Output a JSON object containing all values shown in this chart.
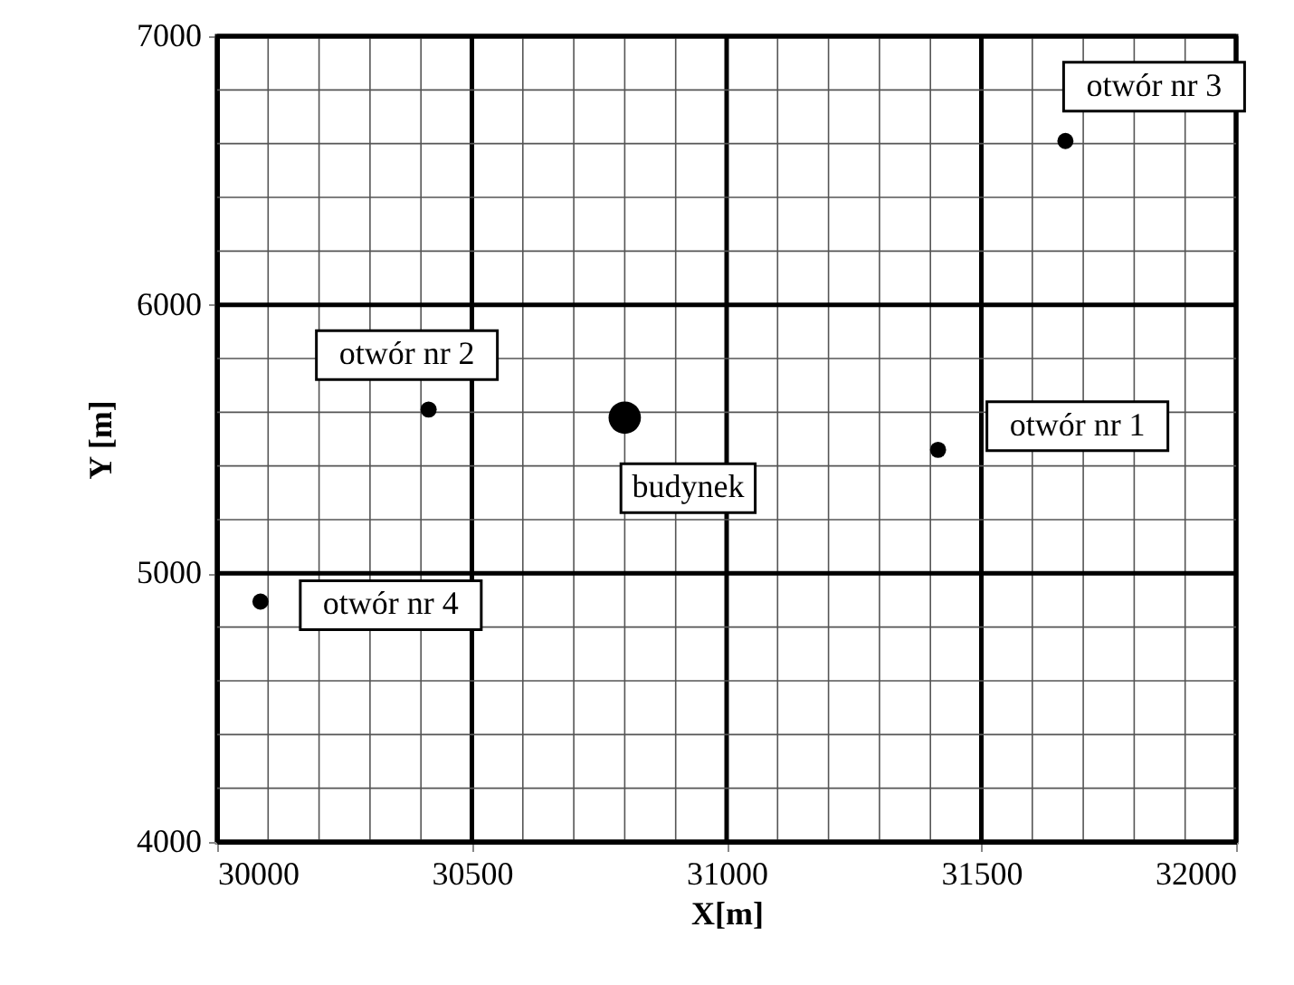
{
  "chart_data": {
    "type": "bubble",
    "xlabel": "X[m]",
    "ylabel": "Y [m]",
    "xlim": [
      30000,
      32000
    ],
    "ylim": [
      4000,
      7000
    ],
    "xticks": [
      30000,
      {
        "value": 30100,
        "label": null
      },
      {
        "value": 30200,
        "label": null
      },
      {
        "value": 30300,
        "label": null
      },
      {
        "value": 30400,
        "label": null
      },
      30500,
      {
        "value": 30600,
        "label": null
      },
      {
        "value": 30700,
        "label": null
      },
      {
        "value": 30800,
        "label": null
      },
      {
        "value": 30900,
        "label": null
      },
      31000,
      {
        "value": 31100,
        "label": null
      },
      {
        "value": 31200,
        "label": null
      },
      {
        "value": 31300,
        "label": null
      },
      {
        "value": 31400,
        "label": null
      },
      31500,
      {
        "value": 31600,
        "label": null
      },
      {
        "value": 31700,
        "label": null
      },
      {
        "value": 31800,
        "label": null
      },
      {
        "value": 31900,
        "label": null
      },
      32000
    ],
    "yticks": [
      4000,
      {
        "value": 4200,
        "label": null
      },
      {
        "value": 4400,
        "label": null
      },
      {
        "value": 4600,
        "label": null
      },
      {
        "value": 4800,
        "label": null
      },
      5000,
      {
        "value": 5200,
        "label": null
      },
      {
        "value": 5400,
        "label": null
      },
      {
        "value": 5600,
        "label": null
      },
      {
        "value": 5800,
        "label": null
      },
      6000,
      {
        "value": 6200,
        "label": null
      },
      {
        "value": 6400,
        "label": null
      },
      {
        "value": 6600,
        "label": null
      },
      {
        "value": 6800,
        "label": null
      },
      7000
    ],
    "grid": true,
    "marker": "circle",
    "series": [
      {
        "color": "#000000",
        "x": [
          31415,
          30415,
          31665,
          30085,
          30800
        ],
        "values": [
          5460,
          5610,
          6610,
          4895,
          5580
        ],
        "sizes": [
          0.25,
          0.25,
          0.25,
          0.25,
          1
        ]
      }
    ],
    "annotations": [
      {
        "text": "otwór nr 1",
        "x": 31415,
        "y": 5460
      },
      {
        "text": "otwór nr 2",
        "x": 30415,
        "y": 5610
      },
      {
        "text": "otwór nr 3",
        "x": 31665,
        "y": 6610
      },
      {
        "text": "otwór nr 4",
        "x": 30085,
        "y": 4895
      },
      {
        "text": "budynek",
        "x": 30800,
        "y": 5580
      }
    ]
  }
}
